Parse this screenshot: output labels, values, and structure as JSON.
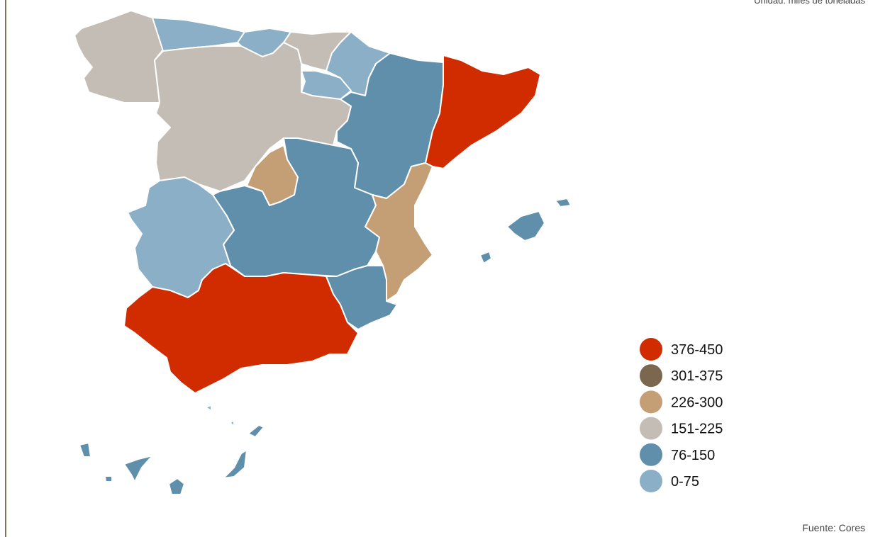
{
  "unit_note": "Unidad: miles de toneladas",
  "legend": [
    {
      "name": "376-450",
      "color": "#d02c00"
    },
    {
      "name": "301-375",
      "color": "#7b6650"
    },
    {
      "name": "226-300",
      "color": "#c49f75"
    },
    {
      "name": "151-225",
      "color": "#c4bdb5"
    },
    {
      "name": "76-150",
      "color": "#5f8fab"
    },
    {
      "name": "0-75",
      "color": "#8aafc6"
    }
  ],
  "source": "Fuente: Cores"
}
